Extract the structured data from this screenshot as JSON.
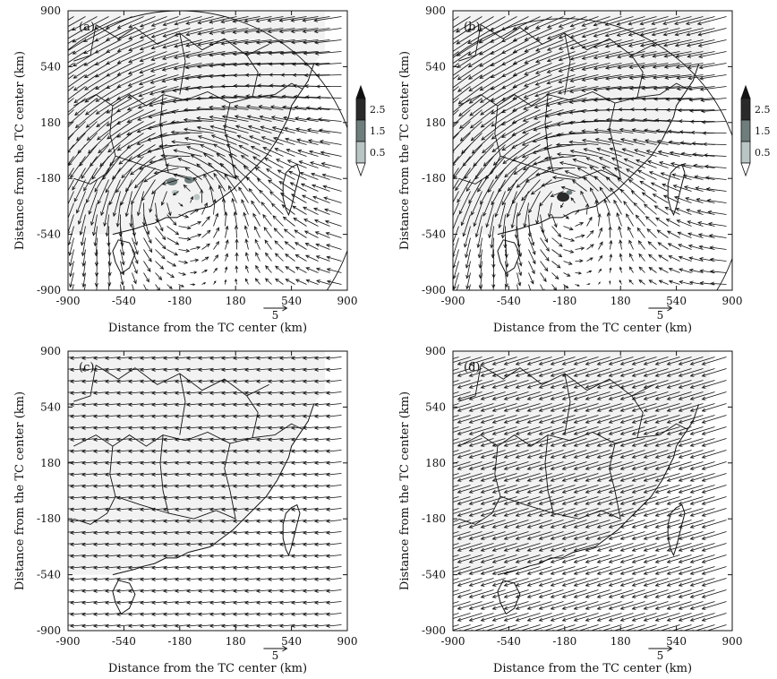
{
  "colors": {
    "map_fill": "#f2f2f2",
    "border": "#111111",
    "arrow": "#111111",
    "shade_low": "#b9c4c4",
    "shade_mid": "#6f7d7d",
    "shade_high": "#2a2a2a"
  },
  "ref_vector": {
    "label": "5",
    "magnitude": 5
  },
  "chart_data": [
    {
      "panel_label": "(a)",
      "type": "vector-field",
      "xlabel": "Distance from the TC center (km)",
      "ylabel": "Distance from the TC center (km)",
      "xlim": [
        -900,
        900
      ],
      "ylim": [
        -900,
        900
      ],
      "xticks": [
        "-900",
        "-540",
        "-180",
        "180",
        "540",
        "900"
      ],
      "yticks": [
        "900",
        "540",
        "180",
        "-180",
        "-540",
        "-900"
      ],
      "colorbar": {
        "ticks": [
          "2.5",
          "1.5",
          "0.5"
        ],
        "levels": [
          0.5,
          1.5,
          2.5
        ]
      },
      "flow": {
        "vortex_x": -180,
        "vortex_y": -250,
        "strength": 4.2,
        "background_u": -1.5,
        "background_v": -0.6,
        "far_gain": 0.35
      },
      "shaded_patches": [
        {
          "x": -230,
          "y": -200,
          "rx": 35,
          "ry": 25,
          "level": 1.5
        },
        {
          "x": -120,
          "y": -190,
          "rx": 30,
          "ry": 22,
          "level": 1.5
        },
        {
          "x": -70,
          "y": -300,
          "rx": 20,
          "ry": 20,
          "level": 0.5
        },
        {
          "x": -210,
          "y": -270,
          "rx": 22,
          "ry": 16,
          "level": 0.5
        }
      ]
    },
    {
      "panel_label": "(b)",
      "type": "vector-field",
      "xlabel": "Distance from the TC center (km)",
      "ylabel": "Distance from the TC center (km)",
      "xlim": [
        -900,
        900
      ],
      "ylim": [
        -900,
        900
      ],
      "xticks": [
        "-900",
        "-540",
        "-180",
        "180",
        "540",
        "900"
      ],
      "yticks": [
        "900",
        "540",
        "180",
        "-180",
        "-540",
        "-900"
      ],
      "colorbar": {
        "ticks": [
          "2.5",
          "1.5",
          "0.5"
        ],
        "levels": [
          0.5,
          1.5,
          2.5
        ]
      },
      "flow": {
        "vortex_x": -180,
        "vortex_y": -300,
        "strength": 4.0,
        "background_u": -1.6,
        "background_v": -0.8,
        "far_gain": 0.35
      },
      "shaded_patches": [
        {
          "x": -190,
          "y": -300,
          "rx": 40,
          "ry": 30,
          "level": 2.5
        },
        {
          "x": -150,
          "y": -270,
          "rx": 20,
          "ry": 15,
          "level": 1.5
        }
      ]
    },
    {
      "panel_label": "(c)",
      "type": "vector-field",
      "xlabel": "Distance from the TC center (km)",
      "ylabel": "Distance from the TC center (km)",
      "xlim": [
        -900,
        900
      ],
      "ylim": [
        -900,
        900
      ],
      "xticks": [
        "-900",
        "-540",
        "-180",
        "180",
        "540",
        "900"
      ],
      "yticks": [
        "900",
        "540",
        "180",
        "-180",
        "-540",
        "-900"
      ],
      "colorbar": null,
      "flow": {
        "vortex_x": 0,
        "vortex_y": 0,
        "strength": 0.0,
        "background_u": -3.2,
        "background_v": -0.3,
        "far_gain": 0.0
      },
      "shaded_patches": []
    },
    {
      "panel_label": "(d)",
      "type": "vector-field",
      "xlabel": "Distance from the TC center (km)",
      "ylabel": "Distance from the TC center (km)",
      "xlim": [
        -900,
        900
      ],
      "ylim": [
        -900,
        900
      ],
      "xticks": [
        "-900",
        "-540",
        "-180",
        "180",
        "540",
        "900"
      ],
      "yticks": [
        "900",
        "540",
        "180",
        "-180",
        "-540",
        "-900"
      ],
      "colorbar": null,
      "flow": {
        "vortex_x": 0,
        "vortex_y": 0,
        "strength": 0.0,
        "background_u": -5.2,
        "background_v": -1.6,
        "far_gain": 0.0
      },
      "shaded_patches": []
    }
  ]
}
